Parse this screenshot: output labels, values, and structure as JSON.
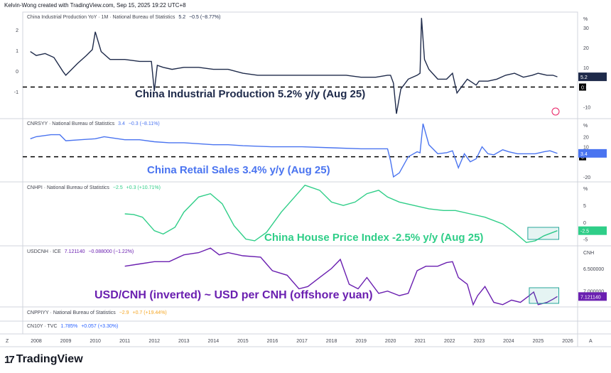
{
  "header": "Kelvin-Wong created with TradingView.com, Sep 15, 2025 19:22 UTC+8",
  "brand": {
    "logo": "17",
    "name": "TradingView"
  },
  "colors": {
    "ip": "#1e2a4a",
    "retail": "#4a74f0",
    "house": "#2fce88",
    "usdcnh": "#6a1fb0",
    "ppi": "#f5a623",
    "cn10y": "#2962ff",
    "box": "#26a69a"
  },
  "legends": {
    "ip": {
      "name": "China Industrial Production YoY · 1M · National Bureau of Statistics",
      "v1": "5.2",
      "v2": "−0.5 (−8.77%)"
    },
    "retail": {
      "name": "CNRSYY · National Bureau of Statistics",
      "v1": "3.4",
      "v2": "−0.3 (−8.11%)"
    },
    "house": {
      "name": "CNHPI · National Bureau of Statistics",
      "v1": "−2.5",
      "v2": "+0.3 (+10.71%)"
    },
    "usdcnh": {
      "name": "USDCNH · ICE",
      "v1": "7.121140",
      "v2": "−0.088000 (−1.22%)"
    },
    "ppi": {
      "name": "CNPPIYY · National Bureau of Statistics",
      "v1": "−2.9",
      "v2": "+0.7 (+19.44%)"
    },
    "cn10y": {
      "name": "CN10Y · TVC",
      "v1": "1.785%",
      "v2": "+0.057 (+3.30%)"
    }
  },
  "annotations": {
    "ip": "China Industrial Production 5.2% y/y (Aug 25)",
    "retail": "China Retail Sales 3.4% y/y (Aug 25)",
    "house": "China House Price Index -2.5% y/y (Aug 25)",
    "usdcnh": "USD/CNH (inverted) ~ USD per CNH (offshore yuan)"
  },
  "axis_corner": {
    "left": "Z",
    "right": "A"
  },
  "chart_data": [
    {
      "type": "line",
      "name": "China Industrial Production YoY",
      "unit": "%",
      "y_ticks": [
        30,
        20,
        10,
        0,
        -10
      ],
      "left_ticks": [
        "2",
        "1",
        "0",
        "-1"
      ],
      "last": "5.2",
      "ref_line": 0,
      "ylim": [
        -16,
        38
      ],
      "x": [
        2007.8,
        2008.0,
        2008.3,
        2008.6,
        2008.9,
        2009.0,
        2009.2,
        2009.4,
        2009.7,
        2009.9,
        2010.0,
        2010.2,
        2010.5,
        2010.8,
        2011.0,
        2011.5,
        2011.9,
        2012.0,
        2012.1,
        2012.3,
        2012.6,
        2013.0,
        2013.5,
        2014.0,
        2014.5,
        2015.0,
        2015.5,
        2016.0,
        2016.5,
        2017.0,
        2017.5,
        2018.0,
        2018.5,
        2019.0,
        2019.5,
        2019.9,
        2020.0,
        2020.1,
        2020.2,
        2020.35,
        2020.6,
        2020.9,
        2021.0,
        2021.05,
        2021.15,
        2021.3,
        2021.6,
        2021.9,
        2022.1,
        2022.25,
        2022.4,
        2022.6,
        2022.9,
        2023.0,
        2023.3,
        2023.6,
        2023.9,
        2024.2,
        2024.5,
        2024.8,
        2025.0,
        2025.3,
        2025.5,
        2025.65
      ],
      "y": [
        18,
        16,
        17,
        15,
        8,
        6,
        9,
        12,
        16,
        19,
        28,
        18,
        14,
        14,
        14,
        13,
        13,
        -2,
        11,
        10,
        9,
        10,
        10,
        9,
        9,
        7,
        6,
        6,
        6,
        6,
        6,
        6,
        6,
        5,
        5,
        6,
        6,
        2,
        -13.5,
        -1,
        4,
        6,
        7,
        35,
        14,
        9,
        4,
        4,
        7,
        -3,
        0,
        4,
        1,
        3,
        3,
        4,
        6,
        7,
        5,
        6,
        7,
        6,
        6,
        5.2
      ]
    },
    {
      "type": "line",
      "name": "CNRSYY",
      "unit": "%",
      "y_ticks": [
        20,
        10,
        0,
        -20
      ],
      "last": "3.4",
      "ref_line": 0,
      "ylim": [
        -25,
        38
      ],
      "x": [
        2007.8,
        2008.0,
        2008.5,
        2008.8,
        2009.0,
        2009.5,
        2010.0,
        2010.3,
        2011.0,
        2011.5,
        2012.0,
        2012.5,
        2013.0,
        2013.5,
        2014.0,
        2014.5,
        2015.0,
        2016.0,
        2017.0,
        2018.0,
        2019.0,
        2019.9,
        2020.0,
        2020.1,
        2020.3,
        2020.6,
        2020.9,
        2021.0,
        2021.1,
        2021.3,
        2021.6,
        2021.9,
        2022.1,
        2022.3,
        2022.5,
        2022.7,
        2022.9,
        2023.1,
        2023.3,
        2023.5,
        2023.8,
        2024.0,
        2024.3,
        2024.6,
        2024.9,
        2025.2,
        2025.4,
        2025.65
      ],
      "y": [
        18,
        20,
        22,
        22,
        16,
        17,
        18,
        20,
        17,
        17,
        15,
        14,
        14,
        13,
        12,
        12,
        11,
        10,
        10,
        9,
        8,
        8,
        -4,
        -20,
        -16,
        0,
        5,
        4,
        33,
        12,
        3,
        4,
        6,
        -11,
        3,
        -5,
        -2,
        10,
        3,
        2,
        7,
        5,
        3,
        3,
        3,
        5,
        6,
        3.4
      ]
    },
    {
      "type": "line",
      "name": "CNHPI",
      "unit": "%",
      "y_ticks": [
        5,
        0,
        -5
      ],
      "last": "-2.5",
      "ylim": [
        -7,
        12
      ],
      "x": [
        2011.0,
        2011.3,
        2011.6,
        2012.0,
        2012.3,
        2012.7,
        2013.0,
        2013.5,
        2013.9,
        2014.3,
        2014.7,
        2015.1,
        2015.4,
        2015.8,
        2016.3,
        2016.8,
        2017.1,
        2017.6,
        2018.0,
        2018.4,
        2018.8,
        2019.2,
        2019.6,
        2019.9,
        2020.3,
        2020.8,
        2021.3,
        2021.8,
        2022.2,
        2022.7,
        2023.2,
        2023.8,
        2024.2,
        2024.6,
        2024.9,
        2025.2,
        2025.65
      ],
      "y": [
        2.5,
        2.3,
        1.5,
        -2.5,
        -3.5,
        -1.5,
        3,
        7.5,
        8.5,
        5.5,
        -1,
        -5,
        -5.5,
        -3,
        3,
        8,
        11,
        9.5,
        6,
        5,
        6,
        8.5,
        9.5,
        7.5,
        6,
        5,
        4,
        3.5,
        3.5,
        2.5,
        1.5,
        -0.5,
        -3,
        -6,
        -5.5,
        -4,
        -2.5
      ]
    },
    {
      "type": "line",
      "name": "USDCNH",
      "unit": "CNH",
      "y_ticks": [
        "6.500000",
        "7.000000"
      ],
      "inverted": true,
      "last": "7.121140",
      "ylim": [
        6.0,
        7.35
      ],
      "x": [
        2011.0,
        2011.5,
        2012.0,
        2012.5,
        2013.0,
        2013.5,
        2013.9,
        2014.2,
        2014.5,
        2015.0,
        2015.6,
        2015.8,
        2016.0,
        2016.5,
        2016.9,
        2017.2,
        2017.6,
        2018.0,
        2018.3,
        2018.6,
        2018.9,
        2019.2,
        2019.6,
        2019.9,
        2020.3,
        2020.6,
        2020.9,
        2021.2,
        2021.6,
        2021.9,
        2022.1,
        2022.3,
        2022.6,
        2022.8,
        2022.95,
        2023.2,
        2023.5,
        2023.8,
        2024.1,
        2024.4,
        2024.7,
        2024.85,
        2025.0,
        2025.3,
        2025.5,
        2025.65
      ],
      "y": [
        6.45,
        6.4,
        6.35,
        6.35,
        6.2,
        6.15,
        6.05,
        6.2,
        6.15,
        6.22,
        6.25,
        6.4,
        6.55,
        6.65,
        6.95,
        6.9,
        6.7,
        6.5,
        6.3,
        6.85,
        6.95,
        6.7,
        7.05,
        7.0,
        7.1,
        7.05,
        6.55,
        6.45,
        6.45,
        6.37,
        6.35,
        6.7,
        6.85,
        7.3,
        7.1,
        6.9,
        7.25,
        7.3,
        7.2,
        7.25,
        7.1,
        7.02,
        7.3,
        7.25,
        7.18,
        7.12
      ]
    }
  ],
  "x_axis": {
    "labels": [
      "2008",
      "2009",
      "2010",
      "2011",
      "2012",
      "2013",
      "2014",
      "2015",
      "2016",
      "2017",
      "2018",
      "2019",
      "2020",
      "2021",
      "2022",
      "2023",
      "2024",
      "2025",
      "2026"
    ]
  }
}
